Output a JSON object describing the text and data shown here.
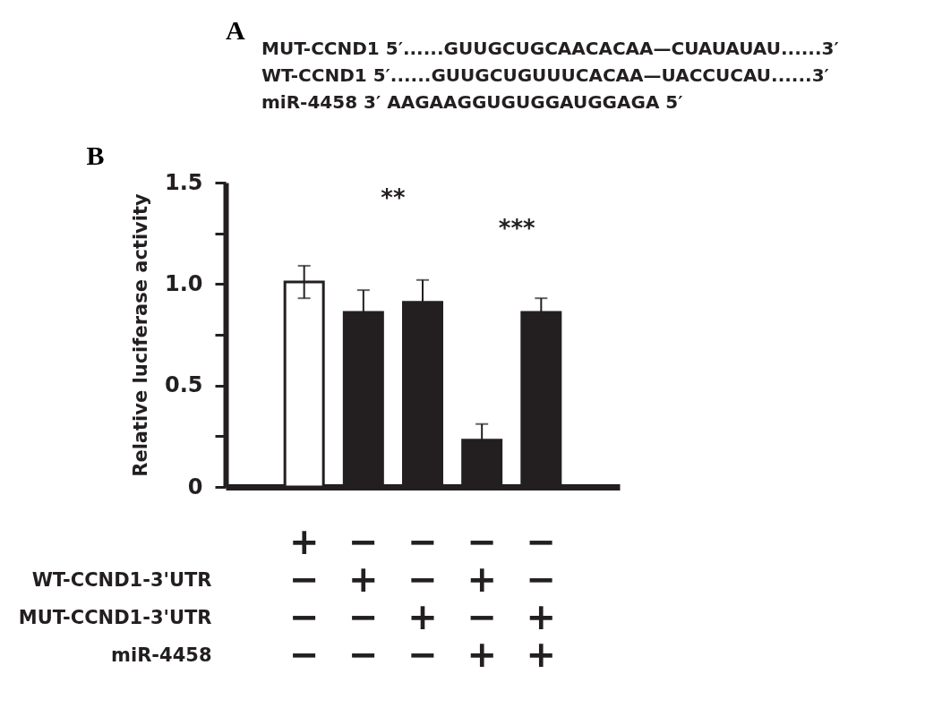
{
  "chart_data": [
    {
      "type": "other",
      "title": "A",
      "annotations": [
        "MUT-CCND1 5′......GUUGCUGCAACACAA—CUAUAUAU......3′",
        "WT-CCND1 5′......GUUGCUGUUUCACAA—UACCUCAU......3′",
        "miR-4458 3′ AAGAAGGUGUGGAUGGAGA 5′"
      ]
    },
    {
      "type": "bar",
      "title": "B",
      "ylabel": "Relative luciferase activity",
      "categories": [
        null,
        null,
        null,
        null,
        null
      ],
      "values": [
        1.01,
        0.86,
        0.91,
        0.23,
        0.86
      ],
      "errors": [
        0.08,
        0.11,
        0.11,
        0.08,
        0.07
      ],
      "colors": [
        "#ffffff",
        "#231f20",
        "#231f20",
        "#231f20",
        "#231f20"
      ],
      "ylim": [
        0,
        1.5
      ],
      "yticks": [
        0,
        {
          "value": 0.25,
          "label": null
        },
        0.5,
        {
          "value": 0.75,
          "label": null
        },
        {
          "value": 1,
          "label": "1.0"
        },
        {
          "value": 1.25,
          "label": null
        },
        1.5
      ],
      "grid": false,
      "annotations": [
        "**",
        "***"
      ]
    },
    {
      "type": "heatmap",
      "categories": [
        null,
        null,
        null,
        null,
        null
      ],
      "y_categories": [
        null,
        "WT-CCND1-3'UTR",
        "MUT-CCND1-3'UTR",
        "miR-4458"
      ],
      "cells": [
        [
          "+",
          "−",
          "−",
          "−",
          "−"
        ],
        [
          "−",
          "+",
          "−",
          "+",
          "−"
        ],
        [
          "−",
          "−",
          "+",
          "−",
          "+"
        ],
        [
          "−",
          "−",
          "−",
          "+",
          "+"
        ]
      ]
    }
  ]
}
